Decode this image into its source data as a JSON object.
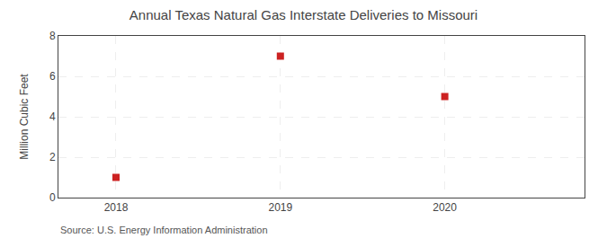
{
  "chart_data": {
    "type": "scatter",
    "title": "Annual Texas Natural Gas Interstate Deliveries to Missouri",
    "ylabel": "Million Cubic Feet",
    "annotations": [
      "Source: U.S. Energy Information Administration"
    ],
    "x": [
      2018,
      2019,
      2020
    ],
    "values": [
      1.0,
      7.0,
      5.0
    ],
    "color": "#cc2222",
    "marker": "square",
    "xlim": [
      2017.65,
      2020.85
    ],
    "xticks": [
      2018,
      2019,
      2020
    ],
    "ylim": [
      0,
      8
    ],
    "yticks": [
      0,
      2,
      4,
      6,
      8
    ],
    "grid": true
  }
}
